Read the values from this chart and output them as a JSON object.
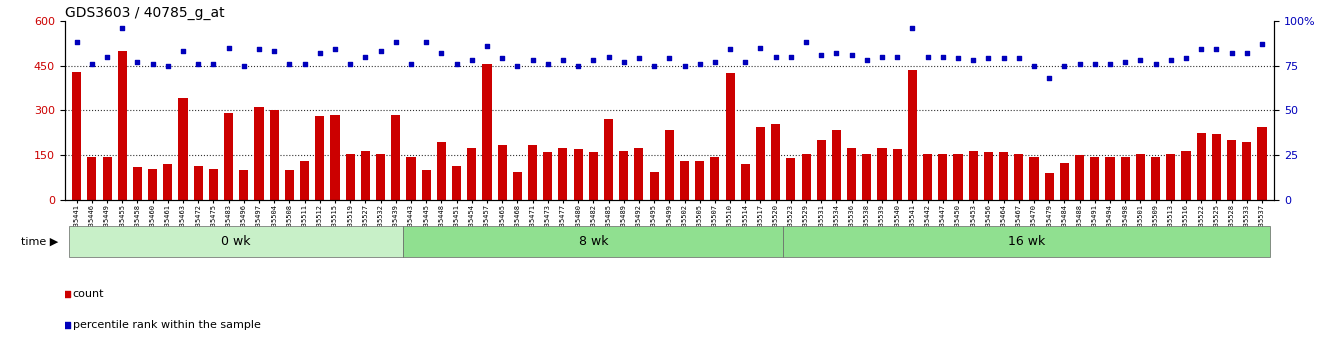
{
  "title": "GDS3603 / 40785_g_at",
  "samples": [
    "GSM35441",
    "GSM35446",
    "GSM35449",
    "GSM35455",
    "GSM35458",
    "GSM35460",
    "GSM35461",
    "GSM35463",
    "GSM35472",
    "GSM35475",
    "GSM35483",
    "GSM35496",
    "GSM35497",
    "GSM35504",
    "GSM35508",
    "GSM35511",
    "GSM35512",
    "GSM35515",
    "GSM35519",
    "GSM35527",
    "GSM35532",
    "GSM35439",
    "GSM35443",
    "GSM35445",
    "GSM35448",
    "GSM35451",
    "GSM35454",
    "GSM35457",
    "GSM35465",
    "GSM35468",
    "GSM35471",
    "GSM35473",
    "GSM35477",
    "GSM35480",
    "GSM35482",
    "GSM35485",
    "GSM35489",
    "GSM35492",
    "GSM35495",
    "GSM35499",
    "GSM35502",
    "GSM35505",
    "GSM35507",
    "GSM35510",
    "GSM35514",
    "GSM35517",
    "GSM35520",
    "GSM35523",
    "GSM35529",
    "GSM35531",
    "GSM35534",
    "GSM35536",
    "GSM35538",
    "GSM35539",
    "GSM35540",
    "GSM35541",
    "GSM35442",
    "GSM35447",
    "GSM35450",
    "GSM35453",
    "GSM35456",
    "GSM35464",
    "GSM35467",
    "GSM35470",
    "GSM35479",
    "GSM35484",
    "GSM35488",
    "GSM35491",
    "GSM35494",
    "GSM35498",
    "GSM35501",
    "GSM35509",
    "GSM35513",
    "GSM35516",
    "GSM35522",
    "GSM35525",
    "GSM35528",
    "GSM35533",
    "GSM35537"
  ],
  "counts": [
    430,
    145,
    145,
    500,
    110,
    105,
    120,
    340,
    115,
    105,
    290,
    100,
    310,
    300,
    100,
    130,
    280,
    285,
    155,
    165,
    155,
    285,
    145,
    100,
    195,
    115,
    175,
    455,
    185,
    95,
    185,
    160,
    175,
    170,
    160,
    270,
    165,
    175,
    95,
    235,
    130,
    130,
    145,
    425,
    120,
    245,
    255,
    140,
    155,
    200,
    235,
    175,
    155,
    175,
    170,
    435,
    155,
    155,
    155,
    165,
    160,
    160,
    155,
    145,
    90,
    125,
    150,
    145,
    145,
    145,
    155,
    145,
    155,
    165,
    225,
    220,
    200,
    195,
    245
  ],
  "percentiles": [
    88,
    76,
    80,
    96,
    77,
    76,
    75,
    83,
    76,
    76,
    85,
    75,
    84,
    83,
    76,
    76,
    82,
    84,
    76,
    80,
    83,
    88,
    76,
    88,
    82,
    76,
    78,
    86,
    79,
    75,
    78,
    76,
    78,
    75,
    78,
    80,
    77,
    79,
    75,
    79,
    75,
    76,
    77,
    84,
    77,
    85,
    80,
    80,
    88,
    81,
    82,
    81,
    78,
    80,
    80,
    96,
    80,
    80,
    79,
    78,
    79,
    79,
    79,
    75,
    68,
    75,
    76,
    76,
    76,
    77,
    78,
    76,
    78,
    79,
    84,
    84,
    82,
    82,
    87
  ],
  "group_starts": [
    0,
    22,
    47
  ],
  "group_ends": [
    22,
    47,
    79
  ],
  "group_labels": [
    "0 wk",
    "8 wk",
    "16 wk"
  ],
  "group_colors": [
    "#c8f0c8",
    "#90e090",
    "#90e090"
  ],
  "ylim_left": [
    0,
    600
  ],
  "ylim_right": [
    0,
    100
  ],
  "yticks_left": [
    0,
    150,
    300,
    450,
    600
  ],
  "yticks_right": [
    0,
    25,
    50,
    75,
    100
  ],
  "bar_color": "#cc0000",
  "dot_color": "#0000bb",
  "grid_color": "#333333",
  "bg_color": "#ffffff",
  "legend_count_label": "count",
  "legend_pct_label": "percentile rank within the sample"
}
